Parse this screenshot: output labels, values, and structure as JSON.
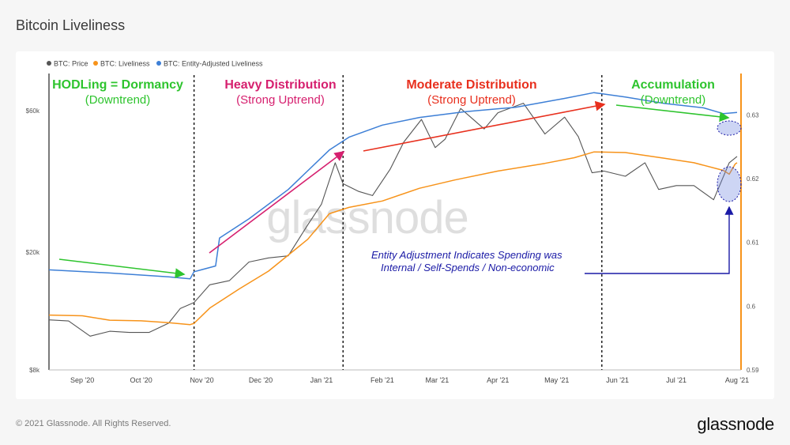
{
  "page_title": "Bitcoin Liveliness",
  "footer": {
    "copyright": "© 2021 Glassnode. All Rights Reserved.",
    "logo": "glassnode"
  },
  "watermark": "glassnode",
  "colors": {
    "price": "#555555",
    "liveliness": "#f7931a",
    "entity_liveliness": "#3d7fd6",
    "green": "#2ec42e",
    "magenta": "#d6206f",
    "red": "#e8301e",
    "annotation_blue": "#1a1aa6"
  },
  "chart_data": {
    "type": "line",
    "title": "",
    "legend_position": "top-left",
    "grid": false,
    "x_ticks": [
      "Sep '20",
      "Oct '20",
      "Nov '20",
      "Dec '20",
      "Jan '21",
      "Feb '21",
      "Mar '21",
      "Apr '21",
      "May '21",
      "Jun '21",
      "Jul '21",
      "Aug '21"
    ],
    "left_axis": {
      "scale": "log",
      "ticks": [
        "$8k",
        "$20k",
        "$60k"
      ],
      "ylim": [
        8000,
        80000
      ]
    },
    "right_axis": {
      "ticks": [
        "0.59",
        "0.6",
        "0.61",
        "0.62",
        "0.63"
      ],
      "ylim": [
        0.59,
        0.6365
      ]
    },
    "series": [
      {
        "name": "BTC: Price",
        "axis": "left",
        "x": [
          "2020-08-15",
          "2020-08-25",
          "2020-09-05",
          "2020-09-15",
          "2020-09-25",
          "2020-10-05",
          "2020-10-15",
          "2020-10-21",
          "2020-10-28",
          "2020-11-05",
          "2020-11-15",
          "2020-11-25",
          "2020-12-05",
          "2020-12-15",
          "2020-12-25",
          "2021-01-01",
          "2021-01-08",
          "2021-01-12",
          "2021-01-20",
          "2021-01-27",
          "2021-02-05",
          "2021-02-12",
          "2021-02-21",
          "2021-02-28",
          "2021-03-05",
          "2021-03-13",
          "2021-03-25",
          "2021-04-01",
          "2021-04-14",
          "2021-04-25",
          "2021-05-05",
          "2021-05-12",
          "2021-05-19",
          "2021-05-25",
          "2021-06-05",
          "2021-06-15",
          "2021-06-22",
          "2021-07-01",
          "2021-07-10",
          "2021-07-20",
          "2021-07-28",
          "2021-08-01"
        ],
        "values": [
          11800,
          11700,
          10400,
          10800,
          10700,
          10700,
          11500,
          12900,
          13500,
          15500,
          16000,
          18500,
          19100,
          19400,
          24700,
          29000,
          40000,
          34000,
          32000,
          31000,
          38000,
          47000,
          56000,
          45000,
          48000,
          61000,
          52000,
          59000,
          63500,
          50000,
          57000,
          49000,
          37000,
          37500,
          36000,
          40000,
          32500,
          33500,
          33500,
          30000,
          40000,
          42000
        ]
      },
      {
        "name": "BTC: Liveliness",
        "axis": "right",
        "x": [
          "2020-08-15",
          "2020-09-01",
          "2020-09-15",
          "2020-10-01",
          "2020-10-15",
          "2020-10-26",
          "2020-10-28",
          "2020-11-05",
          "2020-11-20",
          "2020-12-05",
          "2020-12-25",
          "2021-01-05",
          "2021-01-15",
          "2021-02-01",
          "2021-02-20",
          "2021-03-10",
          "2021-04-01",
          "2021-04-25",
          "2021-05-10",
          "2021-05-20",
          "2021-06-05",
          "2021-06-25",
          "2021-07-10",
          "2021-07-25",
          "2021-07-28",
          "2021-07-31",
          "2021-08-01"
        ],
        "values": [
          0.5986,
          0.5985,
          0.5978,
          0.5977,
          0.5974,
          0.5971,
          0.5973,
          0.5997,
          0.6027,
          0.6055,
          0.6105,
          0.6145,
          0.6155,
          0.6165,
          0.6185,
          0.6198,
          0.6212,
          0.6224,
          0.6233,
          0.6242,
          0.6241,
          0.6232,
          0.6225,
          0.6213,
          0.6207,
          0.6223,
          0.6225
        ]
      },
      {
        "name": "BTC: Entity-Adjusted Liveliness",
        "axis": "right",
        "x": [
          "2020-08-15",
          "2020-09-15",
          "2020-10-15",
          "2020-10-26",
          "2020-10-28",
          "2020-11-08",
          "2020-11-10",
          "2020-11-25",
          "2020-12-15",
          "2021-01-05",
          "2021-01-15",
          "2021-02-01",
          "2021-02-20",
          "2021-03-15",
          "2021-04-10",
          "2021-05-05",
          "2021-05-20",
          "2021-06-05",
          "2021-06-25",
          "2021-07-15",
          "2021-07-25",
          "2021-08-01"
        ],
        "values": [
          0.6057,
          0.6052,
          0.6046,
          0.6043,
          0.6054,
          0.6063,
          0.6107,
          0.6137,
          0.6183,
          0.6245,
          0.6265,
          0.6284,
          0.6296,
          0.6305,
          0.6312,
          0.6326,
          0.6335,
          0.6328,
          0.6318,
          0.6311,
          0.6302,
          0.6304
        ]
      }
    ],
    "regions": [
      {
        "start": "2020-08-15",
        "end": "2020-10-28",
        "label": "HODLing = Dormancy",
        "sublabel": "(Downtrend)"
      },
      {
        "start": "2020-10-28",
        "end": "2021-01-12",
        "label": "Heavy Distribution",
        "sublabel": "(Strong Uptrend)"
      },
      {
        "start": "2021-01-12",
        "end": "2021-05-24",
        "label": "Moderate Distribution",
        "sublabel": "(Strong Uptrend)"
      },
      {
        "start": "2021-05-24",
        "end": "2021-08-01",
        "label": "Accumulation",
        "sublabel": "(Downtrend)"
      }
    ],
    "annotation": {
      "line1": "Entity Adjustment Indicates Spending was",
      "line2": "Internal / Self-Spends / Non-economic"
    }
  }
}
